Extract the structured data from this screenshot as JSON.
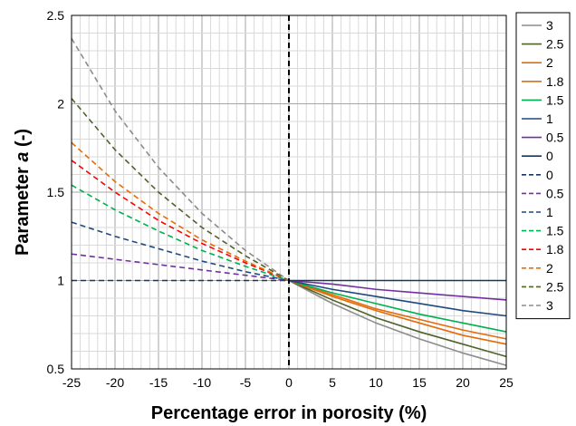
{
  "chart_data": {
    "type": "line",
    "xlabel": "Percentage error in porosity (%)",
    "ylabel_parts": [
      "Parameter ",
      "a",
      " (-)"
    ],
    "xlim": [
      -25,
      25
    ],
    "ylim": [
      0.5,
      2.5
    ],
    "xticks": [
      "-25",
      "-20",
      "-15",
      "-10",
      "-5",
      "0",
      "5",
      "10",
      "15",
      "20",
      "25"
    ],
    "yticks": [
      "0.5",
      "1",
      "1.5",
      "2",
      "2.5"
    ],
    "grid": true,
    "minor_grid": true,
    "vertical_reference_line": {
      "x": 0,
      "style": "dashed",
      "color": "#000000"
    },
    "legend_position": "right",
    "x": [
      0,
      5,
      10,
      15,
      20,
      25
    ],
    "series": [
      {
        "name": "3",
        "color": "#8c8c8c",
        "style": "solid",
        "values": [
          1.0,
          0.87,
          0.76,
          0.67,
          0.59,
          0.52
        ]
      },
      {
        "name": "2.5",
        "color": "#4f6228",
        "style": "solid",
        "values": [
          1.0,
          0.89,
          0.79,
          0.71,
          0.64,
          0.57
        ]
      },
      {
        "name": "2",
        "color": "#e36c0a",
        "style": "solid",
        "values": [
          1.0,
          0.91,
          0.83,
          0.76,
          0.69,
          0.64
        ]
      },
      {
        "name": "1.8",
        "color": "#e46c0a",
        "style": "solid",
        "values": [
          1.0,
          0.92,
          0.84,
          0.78,
          0.72,
          0.67
        ]
      },
      {
        "name": "1.5",
        "color": "#00b050",
        "style": "solid",
        "values": [
          1.0,
          0.93,
          0.87,
          0.81,
          0.76,
          0.71
        ]
      },
      {
        "name": "1",
        "color": "#1f497d",
        "style": "solid",
        "values": [
          1.0,
          0.95,
          0.91,
          0.87,
          0.83,
          0.8
        ]
      },
      {
        "name": "0.5",
        "color": "#7030a0",
        "style": "solid",
        "values": [
          1.0,
          0.98,
          0.95,
          0.93,
          0.91,
          0.89
        ]
      },
      {
        "name": "0",
        "color": "#17365d",
        "style": "solid",
        "values": [
          1.0,
          1.0,
          1.0,
          1.0,
          1.0,
          1.0
        ]
      }
    ],
    "series_dashed": [
      {
        "name": "0",
        "color": "#17365d",
        "style": "dashed",
        "x": [
          -25,
          -20,
          -15,
          -10,
          -5,
          0
        ],
        "values": [
          1.0,
          1.0,
          1.0,
          1.0,
          1.0,
          1.0
        ]
      },
      {
        "name": "0.5",
        "color": "#7030a0",
        "style": "dashed",
        "x": [
          -25,
          -20,
          -15,
          -10,
          -5,
          0
        ],
        "values": [
          1.15,
          1.12,
          1.09,
          1.06,
          1.03,
          1.0
        ]
      },
      {
        "name": "1",
        "color": "#1f497d",
        "style": "dashed",
        "x": [
          -25,
          -20,
          -15,
          -10,
          -5,
          0
        ],
        "values": [
          1.33,
          1.25,
          1.18,
          1.11,
          1.05,
          1.0
        ]
      },
      {
        "name": "1.5",
        "color": "#00b050",
        "style": "dashed",
        "x": [
          -25,
          -20,
          -15,
          -10,
          -5,
          0
        ],
        "values": [
          1.54,
          1.4,
          1.28,
          1.17,
          1.08,
          1.0
        ]
      },
      {
        "name": "1.8",
        "color": "#ff0000",
        "style": "dashed",
        "x": [
          -25,
          -20,
          -15,
          -10,
          -5,
          0
        ],
        "values": [
          1.68,
          1.5,
          1.34,
          1.21,
          1.1,
          1.0
        ]
      },
      {
        "name": "2",
        "color": "#e36c0a",
        "style": "dashed",
        "x": [
          -25,
          -20,
          -15,
          -10,
          -5,
          0
        ],
        "values": [
          1.78,
          1.56,
          1.38,
          1.23,
          1.11,
          1.0
        ]
      },
      {
        "name": "2.5",
        "color": "#4f6228",
        "style": "dashed",
        "x": [
          -25,
          -20,
          -15,
          -10,
          -5,
          0
        ],
        "values": [
          2.03,
          1.74,
          1.5,
          1.3,
          1.14,
          1.0
        ]
      },
      {
        "name": "3",
        "color": "#8c8c8c",
        "style": "dashed",
        "x": [
          -25,
          -20,
          -15,
          -10,
          -5,
          0
        ],
        "values": [
          2.37,
          1.96,
          1.64,
          1.38,
          1.17,
          1.0
        ]
      }
    ]
  }
}
